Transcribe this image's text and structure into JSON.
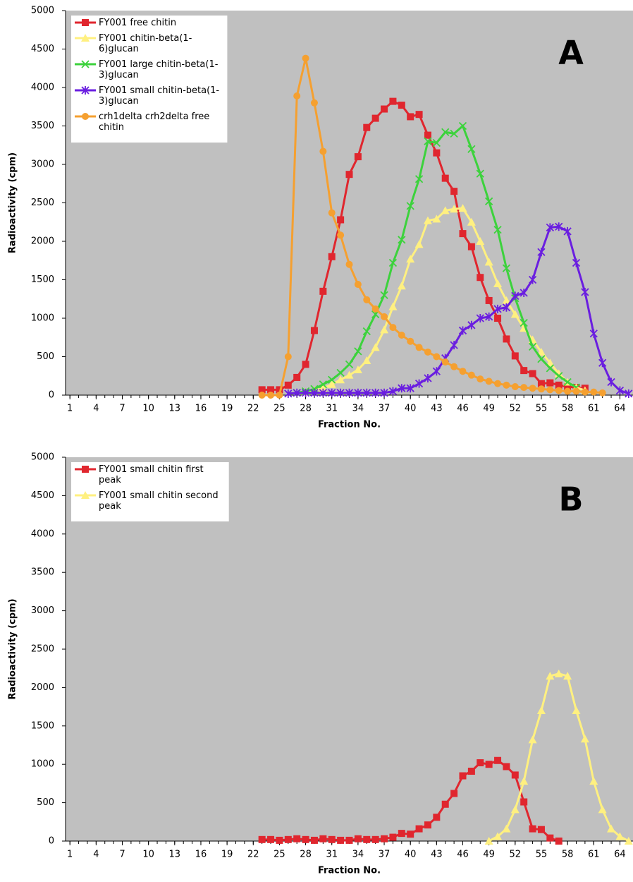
{
  "chart_data": [
    {
      "type": "line",
      "title": "A",
      "xlabel": "Fraction No.",
      "ylabel": "Radioactivity (cpm)",
      "xlim": [
        0.5,
        65.5
      ],
      "xticks": [
        1,
        4,
        7,
        10,
        13,
        16,
        19,
        22,
        25,
        28,
        31,
        34,
        37,
        40,
        43,
        46,
        49,
        52,
        55,
        58,
        61,
        64
      ],
      "ylim": [
        0,
        5000
      ],
      "yticks": [
        0,
        500,
        1000,
        1500,
        2000,
        2500,
        3000,
        3500,
        4000,
        4500,
        5000
      ],
      "background": "#c0c0c0",
      "series": [
        {
          "name": "FY001 free chitin",
          "color": "#e0262e",
          "marker": "square",
          "x": [
            23,
            24,
            25,
            26,
            27,
            28,
            29,
            30,
            31,
            32,
            33,
            34,
            35,
            36,
            37,
            38,
            39,
            40,
            41,
            42,
            43,
            44,
            45,
            46,
            47,
            48,
            49,
            50,
            51,
            52,
            53,
            54,
            55,
            56,
            57,
            58,
            59,
            60
          ],
          "values": [
            70,
            70,
            70,
            130,
            230,
            400,
            840,
            1350,
            1800,
            2280,
            2870,
            3100,
            3480,
            3600,
            3720,
            3820,
            3770,
            3620,
            3650,
            3380,
            3150,
            2820,
            2650,
            2100,
            1930,
            1530,
            1230,
            1000,
            730,
            510,
            320,
            280,
            150,
            160,
            130,
            110,
            100,
            90
          ]
        },
        {
          "name": "FY001 chitin-beta(1-6)glucan",
          "color": "#fff080",
          "marker": "triangle",
          "x": [
            28,
            29,
            30,
            31,
            32,
            33,
            34,
            35,
            36,
            37,
            38,
            39,
            40,
            41,
            42,
            43,
            44,
            45,
            46,
            47,
            48,
            49,
            50,
            51,
            52,
            53,
            54,
            55,
            56,
            57,
            58,
            59,
            60
          ],
          "values": [
            40,
            60,
            90,
            140,
            200,
            260,
            330,
            450,
            620,
            850,
            1150,
            1420,
            1770,
            1960,
            2270,
            2290,
            2400,
            2420,
            2430,
            2250,
            2000,
            1730,
            1450,
            1230,
            1050,
            870,
            720,
            560,
            420,
            280,
            170,
            100,
            60
          ]
        },
        {
          "name": "FY001 large chitin-beta(1-3)glucan",
          "color": "#3cd23c",
          "marker": "x",
          "x": [
            27,
            28,
            29,
            30,
            31,
            32,
            33,
            34,
            35,
            36,
            37,
            38,
            39,
            40,
            41,
            42,
            43,
            44,
            45,
            46,
            47,
            48,
            49,
            50,
            51,
            52,
            53,
            54,
            55,
            56,
            57,
            58,
            59
          ],
          "values": [
            30,
            50,
            80,
            140,
            200,
            290,
            400,
            570,
            830,
            1050,
            1300,
            1720,
            2020,
            2460,
            2810,
            3300,
            3280,
            3420,
            3400,
            3500,
            3200,
            2880,
            2520,
            2150,
            1650,
            1260,
            940,
            630,
            470,
            350,
            250,
            170,
            100
          ]
        },
        {
          "name": "FY001 small chitin-beta(1-3)glucan",
          "color": "#6a1ee0",
          "marker": "star",
          "x": [
            26,
            27,
            28,
            29,
            30,
            31,
            32,
            33,
            34,
            35,
            36,
            37,
            38,
            39,
            40,
            41,
            42,
            43,
            44,
            45,
            46,
            47,
            48,
            49,
            50,
            51,
            52,
            53,
            54,
            55,
            56,
            57,
            58,
            59,
            60,
            61,
            62,
            63,
            64,
            65
          ],
          "values": [
            20,
            30,
            30,
            30,
            30,
            30,
            30,
            30,
            30,
            30,
            30,
            30,
            50,
            90,
            90,
            150,
            220,
            310,
            480,
            650,
            840,
            910,
            1000,
            1020,
            1120,
            1140,
            1290,
            1330,
            1500,
            1860,
            2180,
            2190,
            2130,
            1720,
            1340,
            800,
            420,
            170,
            60,
            20
          ]
        },
        {
          "name": "crh1delta crh2delta free chitin",
          "color": "#f5a030",
          "marker": "circle",
          "x": [
            23,
            24,
            25,
            26,
            27,
            28,
            29,
            30,
            31,
            32,
            33,
            34,
            35,
            36,
            37,
            38,
            39,
            40,
            41,
            42,
            43,
            44,
            45,
            46,
            47,
            48,
            49,
            50,
            51,
            52,
            53,
            54,
            55,
            56,
            57,
            58,
            59,
            60,
            61,
            62
          ],
          "values": [
            0,
            0,
            0,
            500,
            3890,
            4380,
            3800,
            3170,
            2370,
            2080,
            1700,
            1440,
            1240,
            1120,
            1020,
            880,
            780,
            700,
            620,
            560,
            500,
            430,
            370,
            310,
            260,
            210,
            180,
            150,
            130,
            110,
            100,
            90,
            80,
            70,
            60,
            50,
            50,
            40,
            40,
            30
          ]
        }
      ]
    },
    {
      "type": "line",
      "title": "B",
      "xlabel": "Fraction No.",
      "ylabel": "Radioactivity (cpm)",
      "xlim": [
        0.5,
        65.5
      ],
      "xticks": [
        1,
        4,
        7,
        10,
        13,
        16,
        19,
        22,
        25,
        28,
        31,
        34,
        37,
        40,
        43,
        46,
        49,
        52,
        55,
        58,
        61,
        64
      ],
      "ylim": [
        0,
        5000
      ],
      "yticks": [
        0,
        500,
        1000,
        1500,
        2000,
        2500,
        3000,
        3500,
        4000,
        4500,
        5000
      ],
      "background": "#c0c0c0",
      "series": [
        {
          "name": "FY001 small chitin first peak",
          "color": "#e0262e",
          "marker": "square",
          "x": [
            23,
            24,
            25,
            26,
            27,
            28,
            29,
            30,
            31,
            32,
            33,
            34,
            35,
            36,
            37,
            38,
            39,
            40,
            41,
            42,
            43,
            44,
            45,
            46,
            47,
            48,
            49,
            50,
            51,
            52,
            53,
            54,
            55,
            56,
            57
          ],
          "values": [
            20,
            20,
            10,
            20,
            30,
            20,
            10,
            30,
            20,
            10,
            10,
            30,
            20,
            20,
            30,
            50,
            100,
            90,
            160,
            210,
            310,
            480,
            620,
            850,
            910,
            1020,
            1000,
            1050,
            970,
            860,
            510,
            160,
            150,
            40,
            0
          ]
        },
        {
          "name": "FY001 small chitin second peak",
          "color": "#fff080",
          "marker": "triangle",
          "x": [
            49,
            50,
            51,
            52,
            53,
            54,
            55,
            56,
            57,
            58,
            59,
            60,
            61,
            62,
            63,
            64,
            65
          ],
          "values": [
            0,
            60,
            160,
            410,
            780,
            1320,
            1700,
            2150,
            2180,
            2150,
            1700,
            1330,
            780,
            410,
            160,
            60,
            0
          ]
        }
      ]
    }
  ]
}
